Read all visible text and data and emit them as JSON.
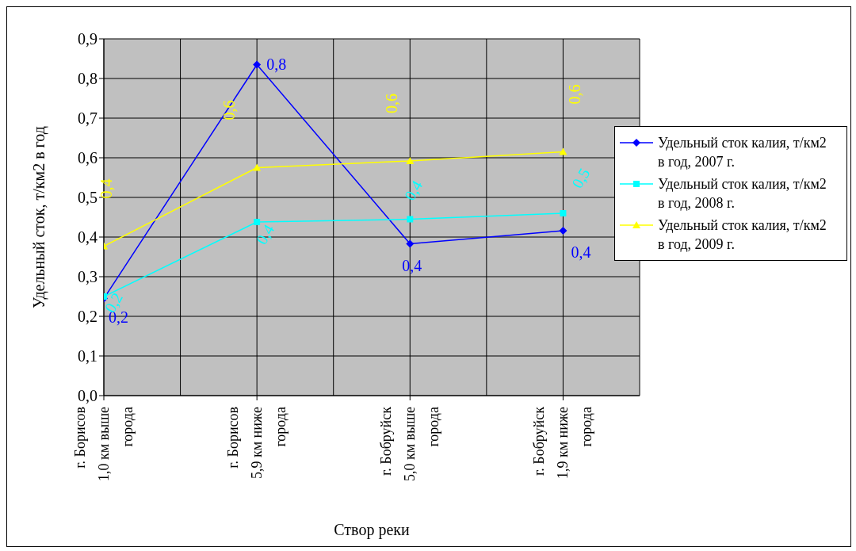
{
  "chart_data": {
    "type": "line",
    "xlabel": "Створ реки",
    "ylabel": "Удельный сток, т/км2 в год",
    "categories": [
      "г. Борисов 1,0 км выше города",
      "г. Борисов 5,9 км ниже города",
      "г. Бобруйск 5,0 км выше города",
      "г. Бобруйск 1,9 км ниже города"
    ],
    "series": [
      {
        "name": "Удельный сток калия, т/км2 в год, 2007 г.",
        "color": "#0000ff",
        "marker": "diamond",
        "values": [
          0.245,
          0.835,
          0.383,
          0.416
        ],
        "value_labels": [
          "0,2",
          "0,8",
          "0,4",
          "0,4"
        ]
      },
      {
        "name": "Удельный сток калия, т/км2 в год, 2008 г.",
        "color": "#00ffff",
        "marker": "square",
        "values": [
          0.25,
          0.438,
          0.445,
          0.46
        ],
        "value_labels": [
          "0,2",
          "0,4",
          "0,4",
          "0,5"
        ]
      },
      {
        "name": "Удельный сток калия, т/км2 в год, 2009 г.",
        "color": "#ffff00",
        "marker": "triangle",
        "values": [
          0.377,
          0.575,
          0.592,
          0.615
        ],
        "value_labels": [
          "0,4",
          "0,6",
          "0,6",
          "0,6"
        ]
      }
    ],
    "ylim": [
      0,
      0.9
    ],
    "yticks": [
      {
        "value": 0,
        "label": "0,0"
      },
      {
        "value": 0.1,
        "label": "0,1"
      },
      {
        "value": 0.2,
        "label": "0,2"
      },
      {
        "value": 0.3,
        "label": "0,3"
      },
      {
        "value": 0.4,
        "label": "0,4"
      },
      {
        "value": 0.5,
        "label": "0,5"
      },
      {
        "value": 0.6,
        "label": "0,6"
      },
      {
        "value": 0.7,
        "label": "0,7"
      },
      {
        "value": 0.8,
        "label": "0,8"
      },
      {
        "value": 0.9,
        "label": "0,9"
      }
    ],
    "grid": true,
    "legend": "right",
    "line_style": "solid"
  }
}
